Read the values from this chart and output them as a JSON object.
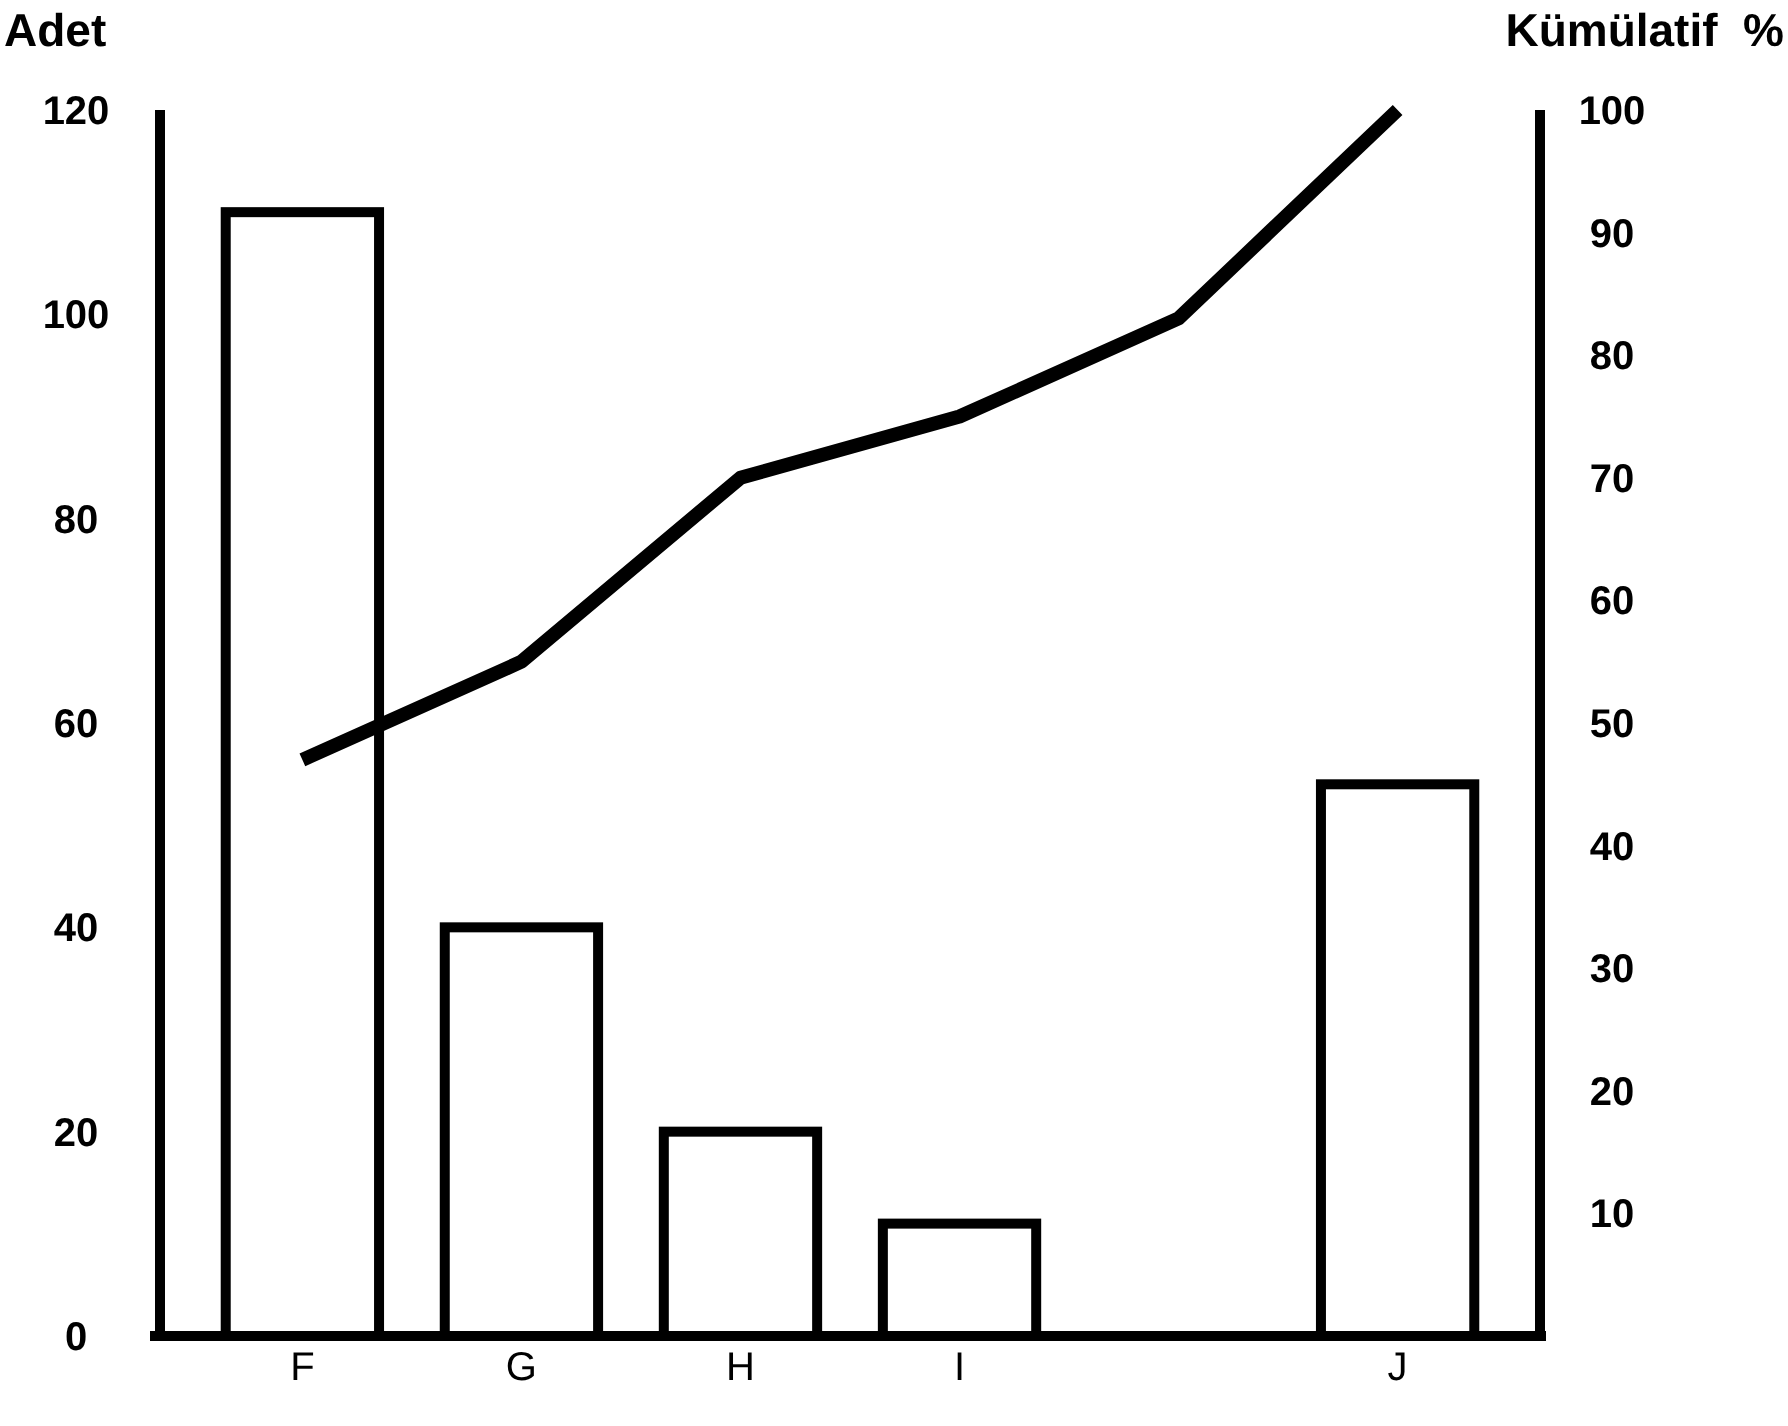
{
  "chart_data": {
    "type": "bar",
    "ylabel": "Adet",
    "y2label": "Kümülatif  %",
    "categories": [
      "F",
      "G",
      "H",
      "I",
      null,
      "J"
    ],
    "series": [
      {
        "color": "#000000",
        "values": [
          110,
          40,
          20,
          11,
          null,
          54
        ]
      },
      {
        "type": "line",
        "axis": "y2",
        "color": "#000000",
        "values": [
          47,
          55,
          70,
          75,
          83,
          100
        ]
      }
    ],
    "ylim": [
      0,
      120
    ],
    "yticks": [
      0,
      20,
      40,
      60,
      80,
      100,
      120
    ],
    "y2lim": [
      0,
      100
    ],
    "y2ticks": [
      10,
      20,
      30,
      40,
      50,
      60,
      70,
      80,
      90,
      100
    ],
    "grid": false,
    "marker": "none",
    "line_style": "solid"
  }
}
